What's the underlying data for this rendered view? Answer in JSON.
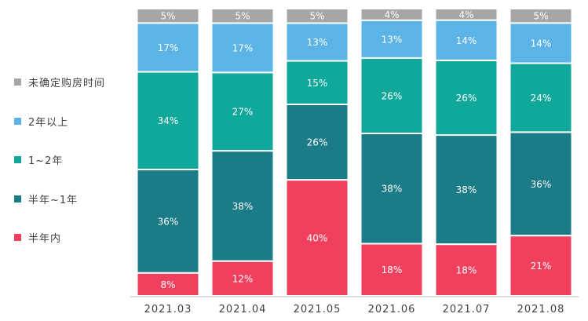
{
  "chart_data": {
    "type": "bar",
    "stacked": true,
    "percent": true,
    "categories": [
      "2021.03",
      "2021.04",
      "2021.05",
      "2021.06",
      "2021.07",
      "2021.08"
    ],
    "series": [
      {
        "name": "半年内",
        "color": "#F0405E",
        "values": [
          8,
          12,
          40,
          18,
          18,
          21
        ]
      },
      {
        "name": "半年~1年",
        "color": "#1B7B86",
        "values": [
          36,
          38,
          26,
          38,
          38,
          36
        ]
      },
      {
        "name": "1~2年",
        "color": "#10A89A",
        "values": [
          34,
          27,
          15,
          26,
          26,
          24
        ]
      },
      {
        "name": "2年以上",
        "color": "#5BB4E5",
        "values": [
          17,
          17,
          13,
          13,
          14,
          14
        ]
      },
      {
        "name": "未确定购房时间",
        "color": "#A6A6A6",
        "values": [
          5,
          5,
          5,
          4,
          4,
          5
        ]
      }
    ],
    "value_labels": true,
    "value_suffix": "%",
    "ylim": [
      0,
      100
    ],
    "axis_visible": false,
    "grid": false,
    "legend_position": "left"
  }
}
